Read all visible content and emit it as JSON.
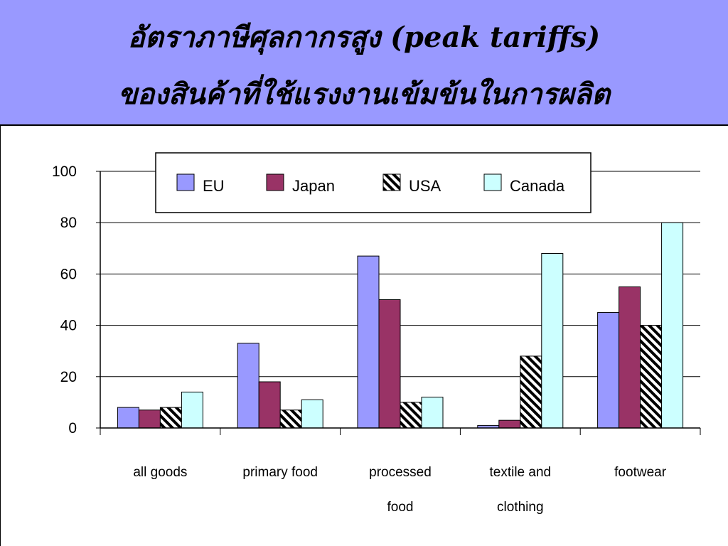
{
  "slide": {
    "title_line1": "อัตราภาษีศุลกากรสูง (peak tariffs)",
    "title_line2": "ของสินค้าที่ใช้แรงงานเข้มข้นในการผลิต"
  },
  "chart_data": {
    "type": "bar",
    "title": "",
    "xlabel": "",
    "ylabel": "",
    "ylim": [
      0,
      100
    ],
    "yticks": [
      0,
      20,
      40,
      60,
      80,
      100
    ],
    "grid": true,
    "legend_position": "top",
    "categories": [
      [
        "all goods"
      ],
      [
        "primary food"
      ],
      [
        "processed",
        "food"
      ],
      [
        "textile and",
        "clothing"
      ],
      [
        "footwear"
      ]
    ],
    "series": [
      {
        "name": "EU",
        "color": "#9999ff",
        "pattern": "solid",
        "values": [
          8,
          33,
          67,
          1,
          45
        ]
      },
      {
        "name": "Japan",
        "color": "#993366",
        "pattern": "solid",
        "values": [
          7,
          18,
          50,
          3,
          55
        ]
      },
      {
        "name": "USA",
        "color": "#000000",
        "pattern": "hatched",
        "values": [
          8,
          7,
          10,
          28,
          40
        ]
      },
      {
        "name": "Canada",
        "color": "#ccffff",
        "pattern": "solid",
        "values": [
          14,
          11,
          12,
          68,
          80
        ]
      }
    ]
  }
}
